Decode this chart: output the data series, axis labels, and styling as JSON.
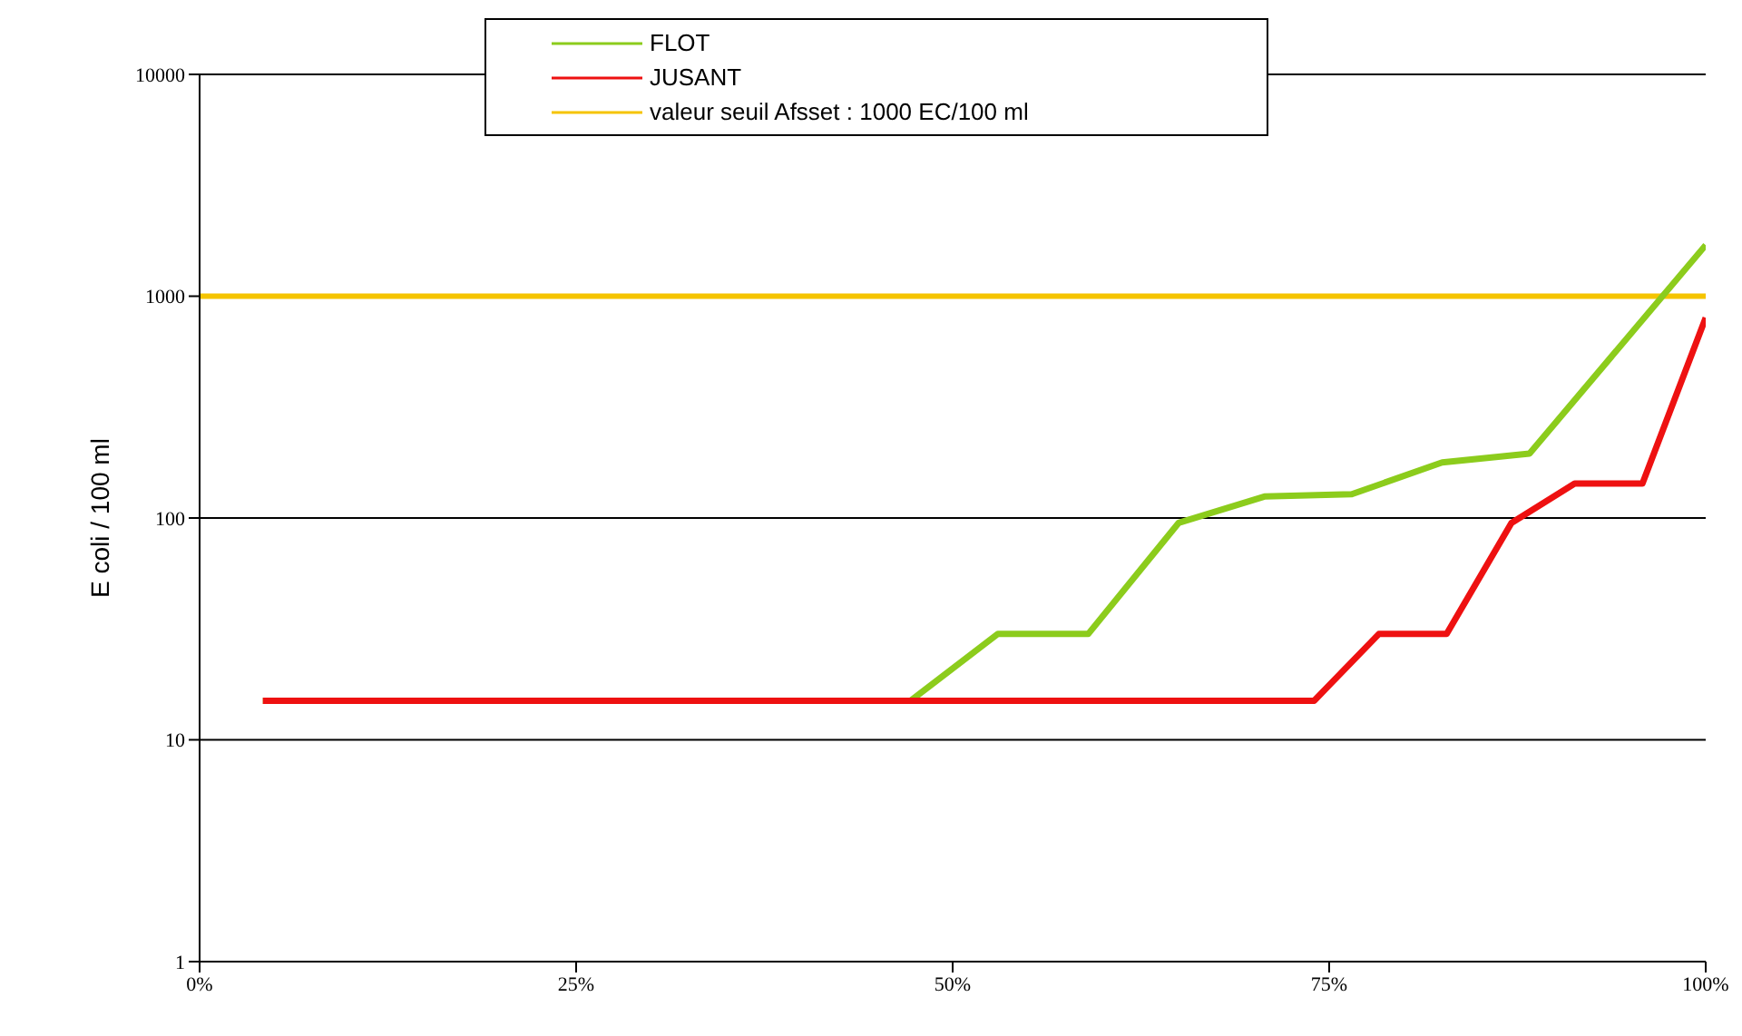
{
  "chart_data": {
    "type": "line",
    "ylabel": "E coli / 100 ml",
    "log": "y",
    "xlim": [
      0,
      100
    ],
    "xticks": [
      {
        "value": 0,
        "label": "0%"
      },
      {
        "value": 25,
        "label": "25%"
      },
      {
        "value": 50,
        "label": "50%"
      },
      {
        "value": 75,
        "label": "75%"
      },
      {
        "value": 100,
        "label": "100%"
      }
    ],
    "ylim": [
      1,
      10000
    ],
    "yticks": [
      1,
      10,
      100,
      1000,
      10000
    ],
    "grid": "y",
    "legend": "top",
    "marker": "none",
    "line_style": "solid",
    "series": [
      {
        "name": "FLOT",
        "color": "#8ccc1c",
        "x": [
          4.2,
          47.2,
          53,
          59,
          65,
          70.7,
          76.5,
          82.5,
          88.3,
          100
        ],
        "values": [
          15,
          15,
          30,
          30,
          95,
          125,
          128,
          178,
          195,
          1700
        ]
      },
      {
        "name": "JUSANT",
        "color": "#ee1111",
        "x": [
          4.2,
          74,
          78.3,
          82.8,
          87.1,
          91.3,
          95.8,
          100
        ],
        "values": [
          15,
          15,
          30,
          30,
          95,
          143,
          143,
          800
        ]
      }
    ],
    "ref_lines": [
      {
        "axis": "y",
        "value": 1000,
        "label": "valeur seuil Afsset : 1000 EC/100 ml",
        "color": "#f5c400"
      }
    ]
  }
}
